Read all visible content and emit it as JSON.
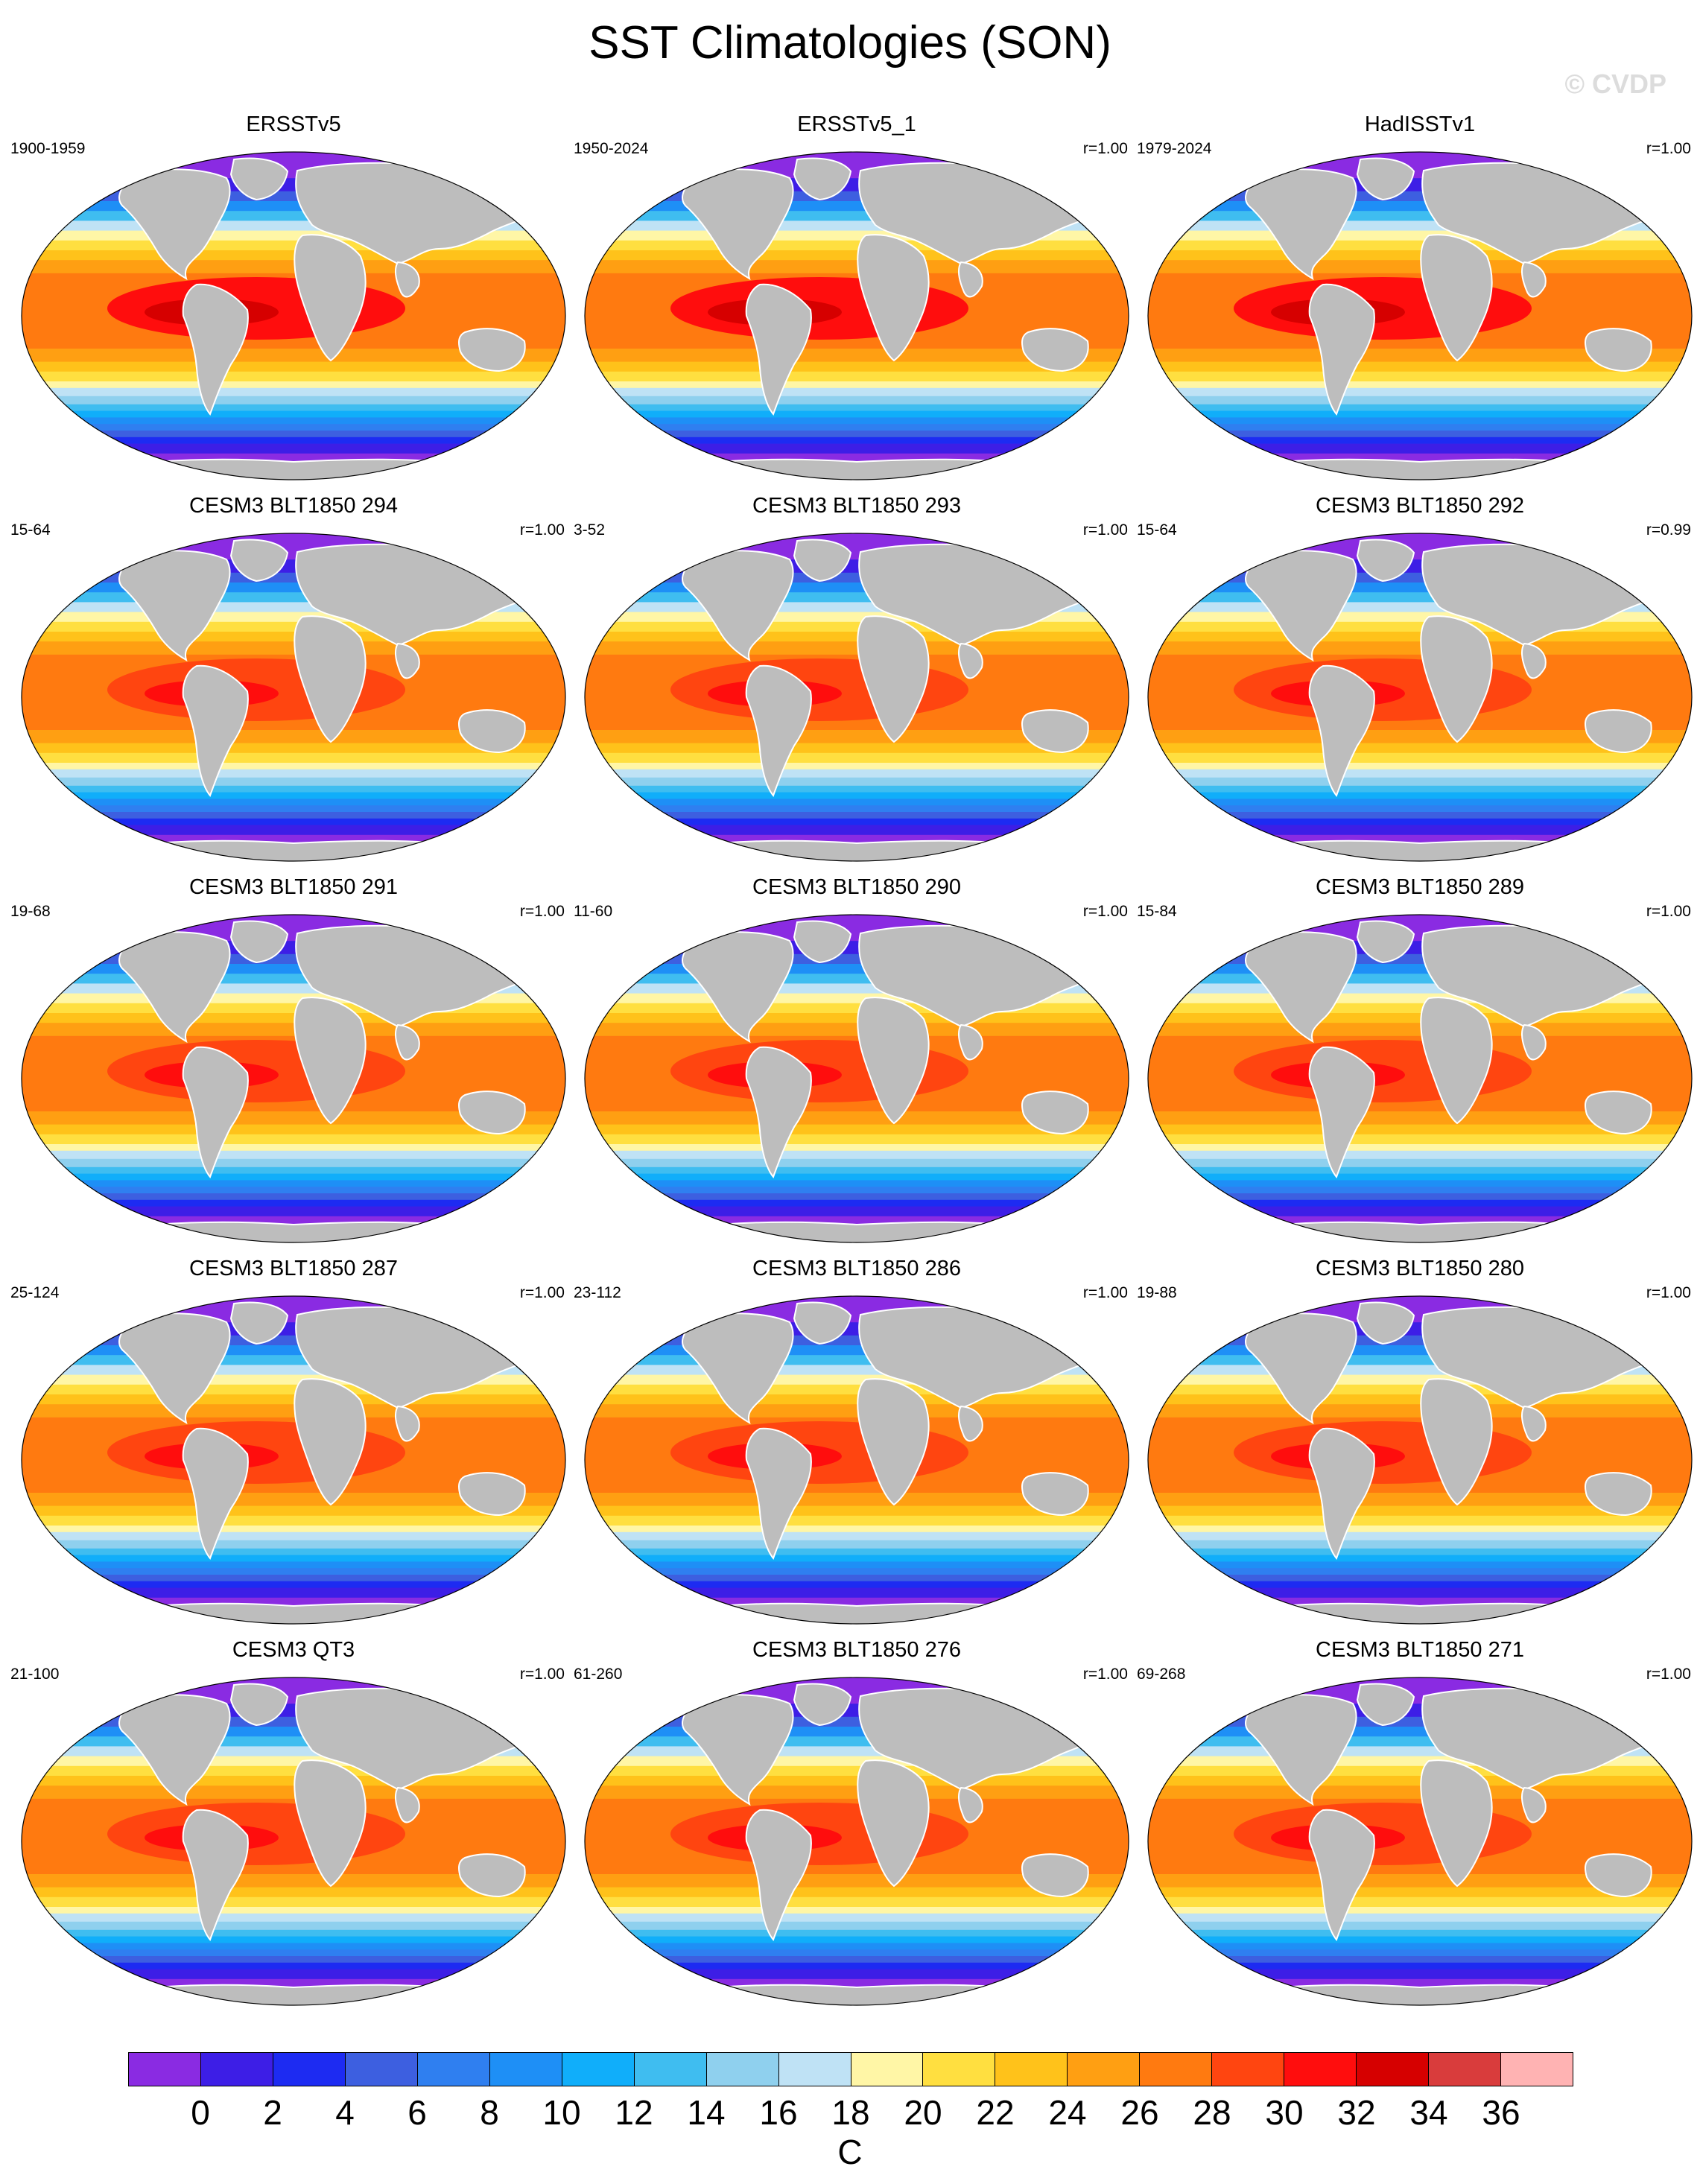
{
  "figure": {
    "title": "SST Climatologies (SON)",
    "watermark": "© CVDP"
  },
  "colors": {
    "land": "#bdbdbd",
    "ocean_scale": [
      "#8a2be2",
      "#3d1ee6",
      "#1d2bf2",
      "#3d5fe0",
      "#2f7ff0",
      "#1e8ff6",
      "#10aefa",
      "#3fbdf0",
      "#8fd0ee",
      "#bfe2f5",
      "#fff6a6",
      "#ffdf40",
      "#ffc21a",
      "#ff9f12",
      "#ff7a10",
      "#ff4510",
      "#ff0d0d",
      "#d60000",
      "#d93c3c",
      "#ffb3b3"
    ]
  },
  "panels": [
    {
      "title": "ERSSTv5",
      "years": "1900-1959",
      "r": ""
    },
    {
      "title": "ERSSTv5_1",
      "years": "1950-2024",
      "r": "r=1.00"
    },
    {
      "title": "HadISSTv1",
      "years": "1979-2024",
      "r": "r=1.00"
    },
    {
      "title": "CESM3 BLT1850 294",
      "years": "15-64",
      "r": "r=1.00"
    },
    {
      "title": "CESM3 BLT1850 293",
      "years": "3-52",
      "r": "r=1.00"
    },
    {
      "title": "CESM3 BLT1850 292",
      "years": "15-64",
      "r": "r=0.99"
    },
    {
      "title": "CESM3 BLT1850 291",
      "years": "19-68",
      "r": "r=1.00"
    },
    {
      "title": "CESM3 BLT1850 290",
      "years": "11-60",
      "r": "r=1.00"
    },
    {
      "title": "CESM3 BLT1850 289",
      "years": "15-84",
      "r": "r=1.00"
    },
    {
      "title": "CESM3 BLT1850 287",
      "years": "25-124",
      "r": "r=1.00"
    },
    {
      "title": "CESM3 BLT1850 286",
      "years": "23-112",
      "r": "r=1.00"
    },
    {
      "title": "CESM3 BLT1850 280",
      "years": "19-88",
      "r": "r=1.00"
    },
    {
      "title": "CESM3 QT3",
      "years": "21-100",
      "r": "r=1.00"
    },
    {
      "title": "CESM3 BLT1850 276",
      "years": "61-260",
      "r": "r=1.00"
    },
    {
      "title": "CESM3 BLT1850 271",
      "years": "69-268",
      "r": "r=1.00"
    }
  ],
  "colorbar": {
    "labels": [
      "0",
      "2",
      "4",
      "6",
      "8",
      "10",
      "12",
      "14",
      "16",
      "18",
      "20",
      "22",
      "24",
      "26",
      "28",
      "30",
      "32",
      "34",
      "36"
    ],
    "units": "C"
  }
}
